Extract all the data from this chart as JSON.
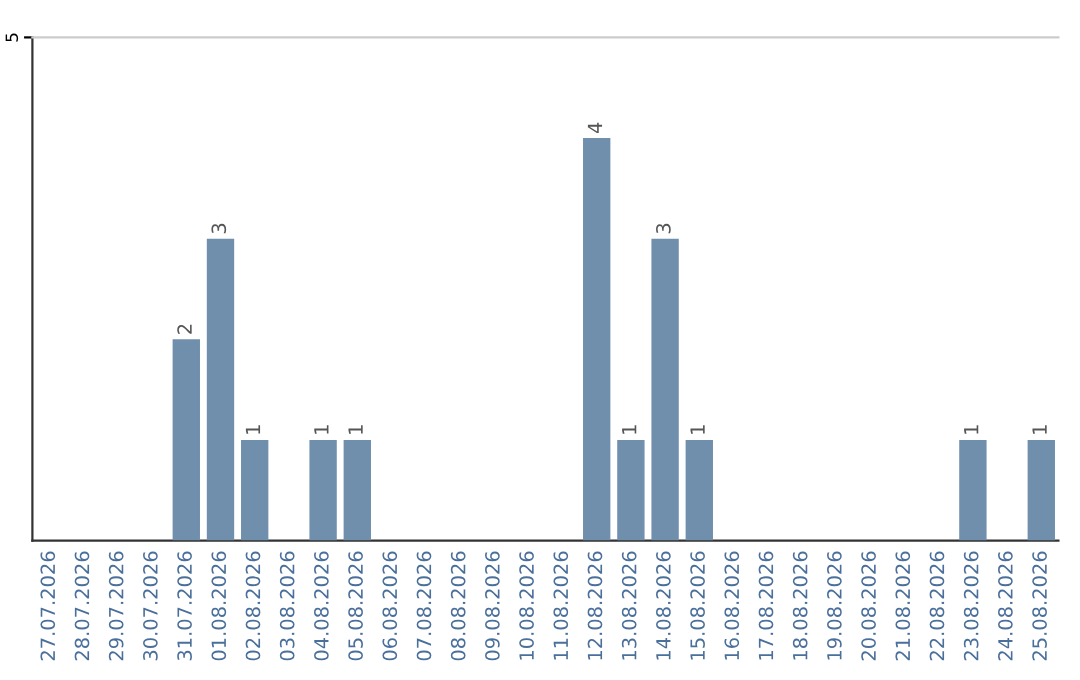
{
  "chart_data": {
    "type": "bar",
    "categories": [
      "27.07.2026",
      "28.07.2026",
      "29.07.2026",
      "30.07.2026",
      "31.07.2026",
      "01.08.2026",
      "02.08.2026",
      "03.08.2026",
      "04.08.2026",
      "05.08.2026",
      "06.08.2026",
      "07.08.2026",
      "08.08.2026",
      "09.08.2026",
      "10.08.2026",
      "11.08.2026",
      "12.08.2026",
      "13.08.2026",
      "14.08.2026",
      "15.08.2026",
      "16.08.2026",
      "17.08.2026",
      "18.08.2026",
      "19.08.2026",
      "20.08.2026",
      "21.08.2026",
      "22.08.2026",
      "23.08.2026",
      "24.08.2026",
      "25.08.2026"
    ],
    "values": [
      0,
      0,
      0,
      0,
      2,
      3,
      1,
      0,
      1,
      1,
      0,
      0,
      0,
      0,
      0,
      0,
      4,
      1,
      3,
      1,
      0,
      0,
      0,
      0,
      0,
      0,
      0,
      1,
      0,
      1
    ],
    "value_labels": [
      null,
      null,
      null,
      null,
      "2",
      "3",
      "1",
      null,
      "1",
      "1",
      null,
      null,
      null,
      null,
      null,
      null,
      "4",
      "1",
      "3",
      "1",
      null,
      null,
      null,
      null,
      null,
      null,
      null,
      "1",
      null,
      "1"
    ],
    "color": "#6f8fad",
    "ylim": [
      0,
      5
    ],
    "yticks": [
      5
    ]
  }
}
